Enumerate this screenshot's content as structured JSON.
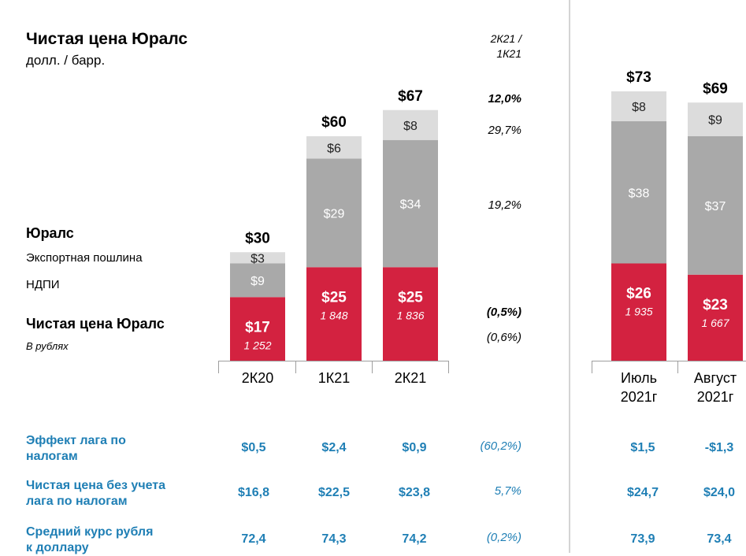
{
  "title": "Чистая цена Юралс",
  "subtitle": "долл. / барр.",
  "changes_header": [
    "2К21 /",
    "1К21"
  ],
  "legend": {
    "urals": "Юралс",
    "export_duty": "Экспортная пошлина",
    "mineral_tax": "НДПИ",
    "net_price": "Чистая цена Юралс",
    "in_rubles": "В рублях"
  },
  "colors": {
    "net_price": "#d32240",
    "mineral_tax": "#a9a9a9",
    "export_duty": "#dcdcdc",
    "table_text": "#1f7fb5"
  },
  "chart_data": {
    "type": "bar",
    "stacked": true,
    "categories": [
      "2К20",
      "1К21",
      "2К21",
      "Июль 2021г",
      "Август 2021г"
    ],
    "category_lines": [
      [
        "2К20"
      ],
      [
        "1К21"
      ],
      [
        "2К21"
      ],
      [
        "Июль",
        "2021г"
      ],
      [
        "Август",
        "2021г"
      ]
    ],
    "series": [
      {
        "name": "Чистая цена Юралс",
        "values": [
          17,
          25,
          25,
          26,
          23
        ],
        "labels": [
          "$17",
          "$25",
          "$25",
          "$26",
          "$23"
        ],
        "color": "#d32240"
      },
      {
        "name": "НДПИ",
        "values": [
          9,
          29,
          34,
          38,
          37
        ],
        "labels": [
          "$9",
          "$29",
          "$34",
          "$38",
          "$37"
        ],
        "color": "#a9a9a9"
      },
      {
        "name": "Экспортная пошлина",
        "values": [
          3,
          6,
          8,
          8,
          9
        ],
        "labels": [
          "$3",
          "$6",
          "$8",
          "$8",
          "$9"
        ],
        "color": "#dcdcdc"
      }
    ],
    "totals": [
      30,
      60,
      67,
      73,
      69
    ],
    "total_labels": [
      "$30",
      "$60",
      "$67",
      "$73",
      "$69"
    ],
    "rub_values": [
      "1 252",
      "1 848",
      "1 836",
      "1 935",
      "1 667"
    ],
    "changes": {
      "total": "12,0%",
      "export_duty": "29,7%",
      "mineral_tax": "19,2%",
      "net_price": "(0,5%)",
      "rub": "(0,6%)"
    }
  },
  "table": [
    {
      "label": [
        "Эффект лага по",
        "налогам"
      ],
      "values": [
        "$0,5",
        "$2,4",
        "$0,9",
        "$1,5",
        "-$1,3"
      ],
      "change": "(60,2%)"
    },
    {
      "label": [
        "Чистая цена без учета",
        "лага по налогам"
      ],
      "values": [
        "$16,8",
        "$22,5",
        "$23,8",
        "$24,7",
        "$24,0"
      ],
      "change": "5,7%"
    },
    {
      "label": [
        "Средний курс рубля",
        "к доллару"
      ],
      "values": [
        "72,4",
        "74,3",
        "74,2",
        "73,9",
        "73,4"
      ],
      "change": "(0,2%)"
    }
  ]
}
